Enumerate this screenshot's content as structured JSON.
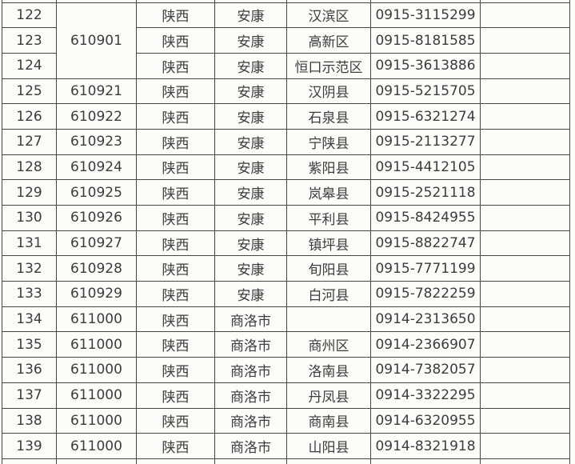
{
  "colors": {
    "page-bg": "#fdfdfc",
    "cell-bg": "#fcfcfb",
    "border-color": "#474747",
    "text-color": "#3c3c3c"
  },
  "table": {
    "rows": [
      {
        "no": "122",
        "code": "610901",
        "province": "陕西",
        "city": "安康",
        "district": "汉滨区",
        "phone": "0915-3115299"
      },
      {
        "no": "123",
        "province": "陕西",
        "city": "安康",
        "district": "高新区",
        "phone": "0915-8181585"
      },
      {
        "no": "124",
        "province": "陕西",
        "city": "安康",
        "district": "恒口示范区",
        "phone": "0915-3613886"
      },
      {
        "no": "125",
        "code": "610921",
        "province": "陕西",
        "city": "安康",
        "district": "汉阴县",
        "phone": "0915-5215705"
      },
      {
        "no": "126",
        "code": "610922",
        "province": "陕西",
        "city": "安康",
        "district": "石泉县",
        "phone": "0915-6321274"
      },
      {
        "no": "127",
        "code": "610923",
        "province": "陕西",
        "city": "安康",
        "district": "宁陕县",
        "phone": "0915-2113277"
      },
      {
        "no": "128",
        "code": "610924",
        "province": "陕西",
        "city": "安康",
        "district": "紫阳县",
        "phone": "0915-4412105"
      },
      {
        "no": "129",
        "code": "610925",
        "province": "陕西",
        "city": "安康",
        "district": "岚皋县",
        "phone": "0915-2521118"
      },
      {
        "no": "130",
        "code": "610926",
        "province": "陕西",
        "city": "安康",
        "district": "平利县",
        "phone": "0915-8424955"
      },
      {
        "no": "131",
        "code": "610927",
        "province": "陕西",
        "city": "安康",
        "district": "镇坪县",
        "phone": "0915-8822747"
      },
      {
        "no": "132",
        "code": "610928",
        "province": "陕西",
        "city": "安康",
        "district": "旬阳县",
        "phone": "0915-7771199"
      },
      {
        "no": "133",
        "code": "610929",
        "province": "陕西",
        "city": "安康",
        "district": "白河县",
        "phone": "0915-7822259"
      },
      {
        "no": "134",
        "code": "611000",
        "province": "陕西",
        "city": "商洛市",
        "district": "",
        "phone": "0914-2313650"
      },
      {
        "no": "135",
        "code": "611000",
        "province": "陕西",
        "city": "商洛市",
        "district": "商州区",
        "phone": "0914-2366907"
      },
      {
        "no": "136",
        "code": "611000",
        "province": "陕西",
        "city": "商洛市",
        "district": "洛南县",
        "phone": "0914-7382057"
      },
      {
        "no": "137",
        "code": "611000",
        "province": "陕西",
        "city": "商洛市",
        "district": "丹凤县",
        "phone": "0914-3322295"
      },
      {
        "no": "138",
        "code": "611000",
        "province": "陕西",
        "city": "商洛市",
        "district": "商南县",
        "phone": "0914-6320955"
      },
      {
        "no": "139",
        "code": "611000",
        "province": "陕西",
        "city": "商洛市",
        "district": "山阳县",
        "phone": "0914-8321918"
      }
    ]
  }
}
